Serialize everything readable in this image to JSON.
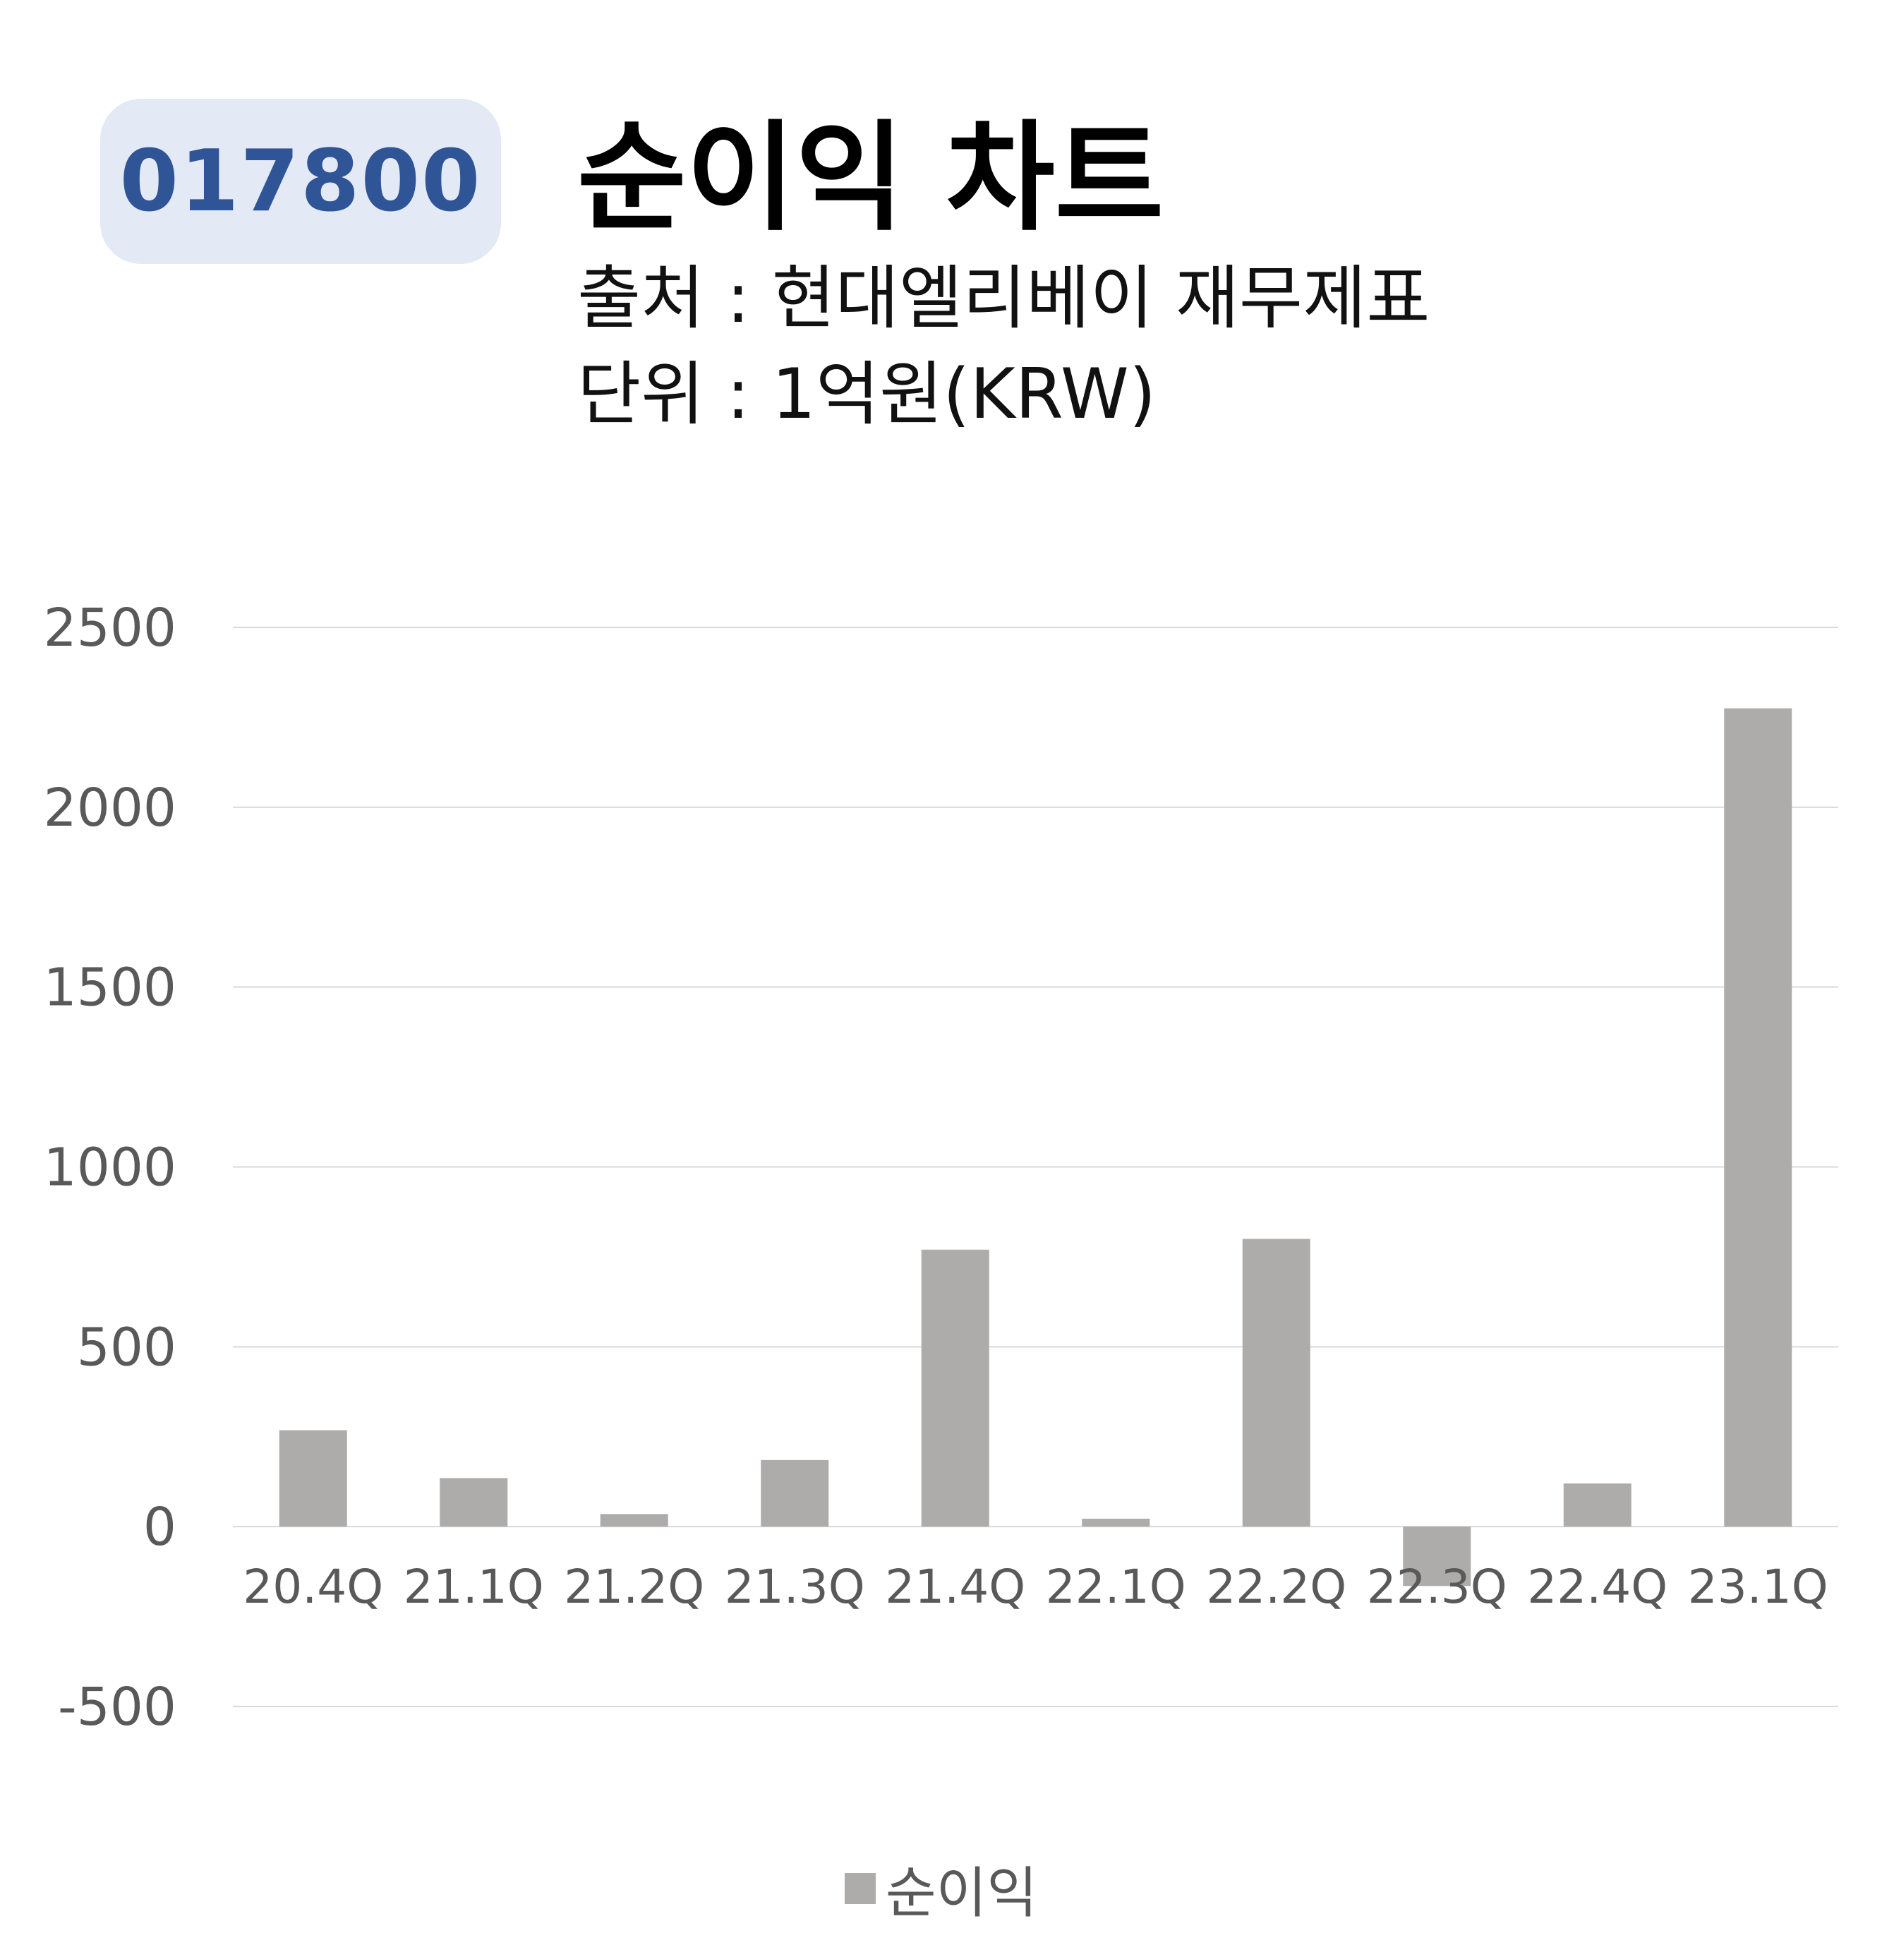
{
  "header": {
    "stock_code": "017800",
    "title": "순이익 차트",
    "source_line": "출처 : 현대엘리베이 재무제표",
    "unit_line": "단위 : 1억원(KRW)"
  },
  "colors": {
    "badge_bg": "#e3e9f5",
    "badge_text": "#2f5597",
    "bar": "#aeabab",
    "grid": "#d9d9d9",
    "axis_text": "#595959"
  },
  "chart_data": {
    "type": "bar",
    "title": "",
    "xlabel": "",
    "ylabel": "",
    "categories": [
      "20.4Q",
      "21.1Q",
      "21.2Q",
      "21.3Q",
      "21.4Q",
      "22.1Q",
      "22.2Q",
      "22.3Q",
      "22.4Q",
      "23.1Q"
    ],
    "series": [
      {
        "name": "순이익",
        "values": [
          268,
          135,
          35,
          185,
          770,
          22,
          800,
          -165,
          120,
          2275
        ]
      }
    ],
    "ylim": [
      -500,
      2500
    ],
    "yticks": [
      2500,
      2000,
      1500,
      1000,
      500,
      0,
      -500
    ],
    "grid": true,
    "legend": "bottom-center"
  }
}
